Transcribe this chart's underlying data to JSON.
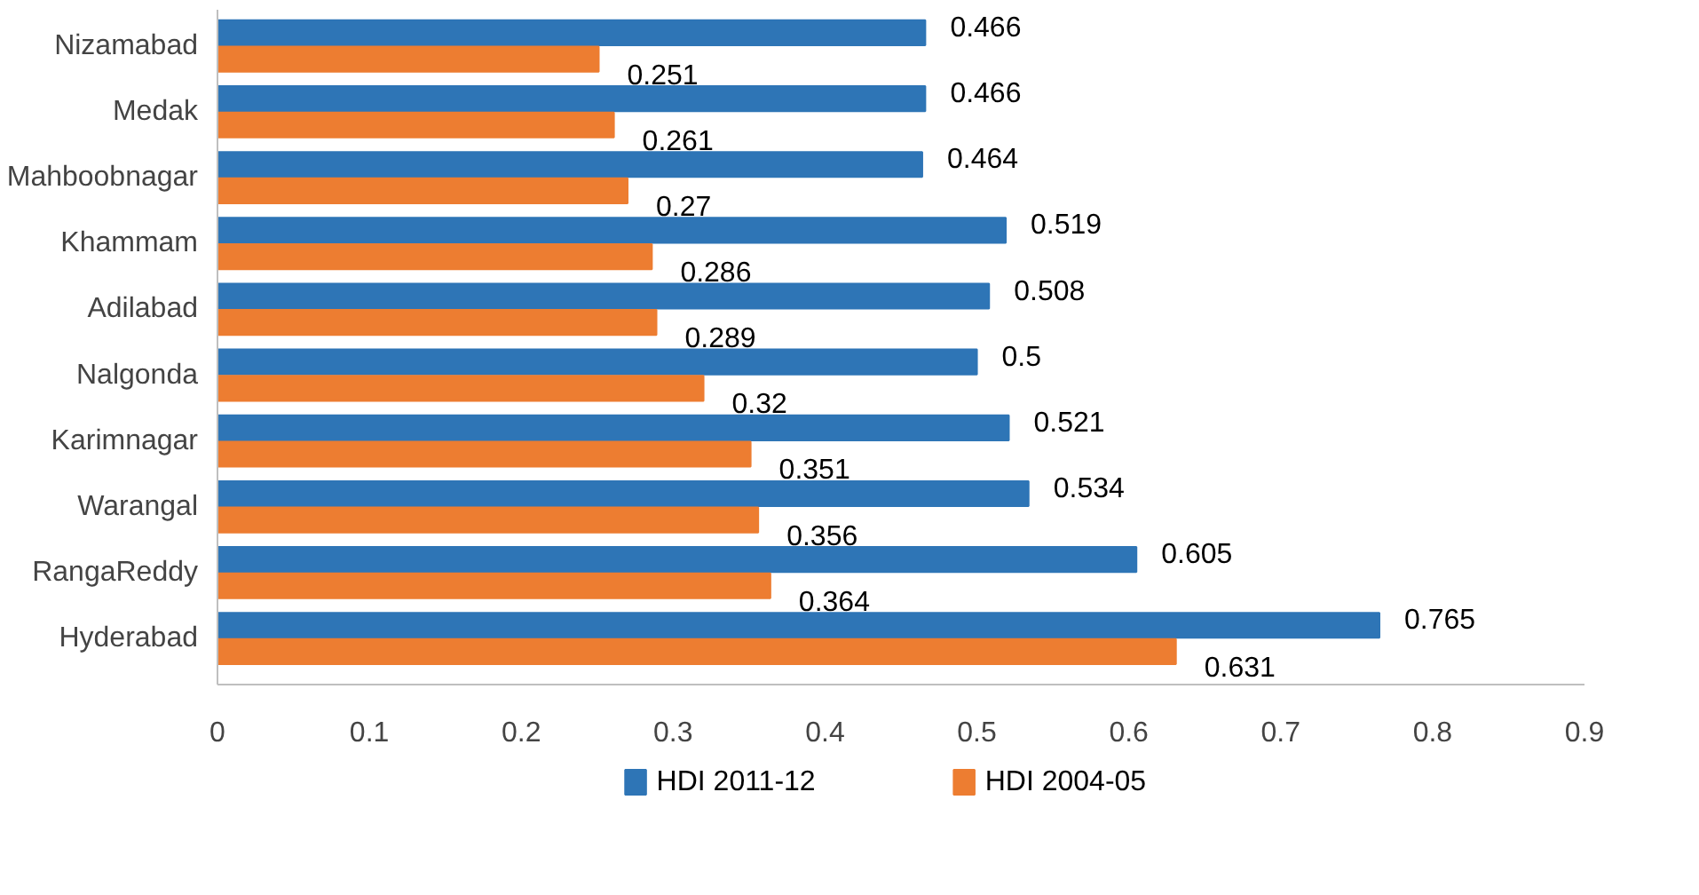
{
  "chart_data": {
    "type": "bar",
    "orientation": "horizontal",
    "categories": [
      "Nizamabad",
      "Medak",
      "Mahboobnagar",
      "Khammam",
      "Adilabad",
      "Nalgonda",
      "Karimnagar",
      "Warangal",
      "RangaReddy",
      "Hyderabad"
    ],
    "series": [
      {
        "name": "HDI 2011-12",
        "color": "#2e75b6",
        "values": [
          0.466,
          0.466,
          0.464,
          0.519,
          0.508,
          0.5,
          0.521,
          0.534,
          0.605,
          0.765
        ]
      },
      {
        "name": "HDI 2004-05",
        "color": "#ed7d31",
        "values": [
          0.251,
          0.261,
          0.27,
          0.286,
          0.289,
          0.32,
          0.351,
          0.356,
          0.364,
          0.631
        ]
      }
    ],
    "xlim": [
      0,
      0.9
    ],
    "xticks": [
      0,
      0.1,
      0.2,
      0.3,
      0.4,
      0.5,
      0.6,
      0.7,
      0.8,
      0.9
    ],
    "data_labels": true,
    "grid": false,
    "legend": "bottom"
  }
}
